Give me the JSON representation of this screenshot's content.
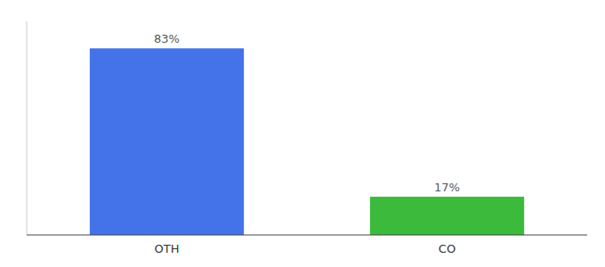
{
  "chart_data": {
    "type": "bar",
    "categories": [
      "OTH",
      "CO"
    ],
    "values": [
      83,
      17
    ],
    "value_labels": [
      "83%",
      "17%"
    ],
    "colors": [
      "#4472e8",
      "#3cba3c"
    ],
    "ylim": [
      0,
      95
    ],
    "data_labels": true,
    "tick_labels": "x",
    "grid": false
  }
}
